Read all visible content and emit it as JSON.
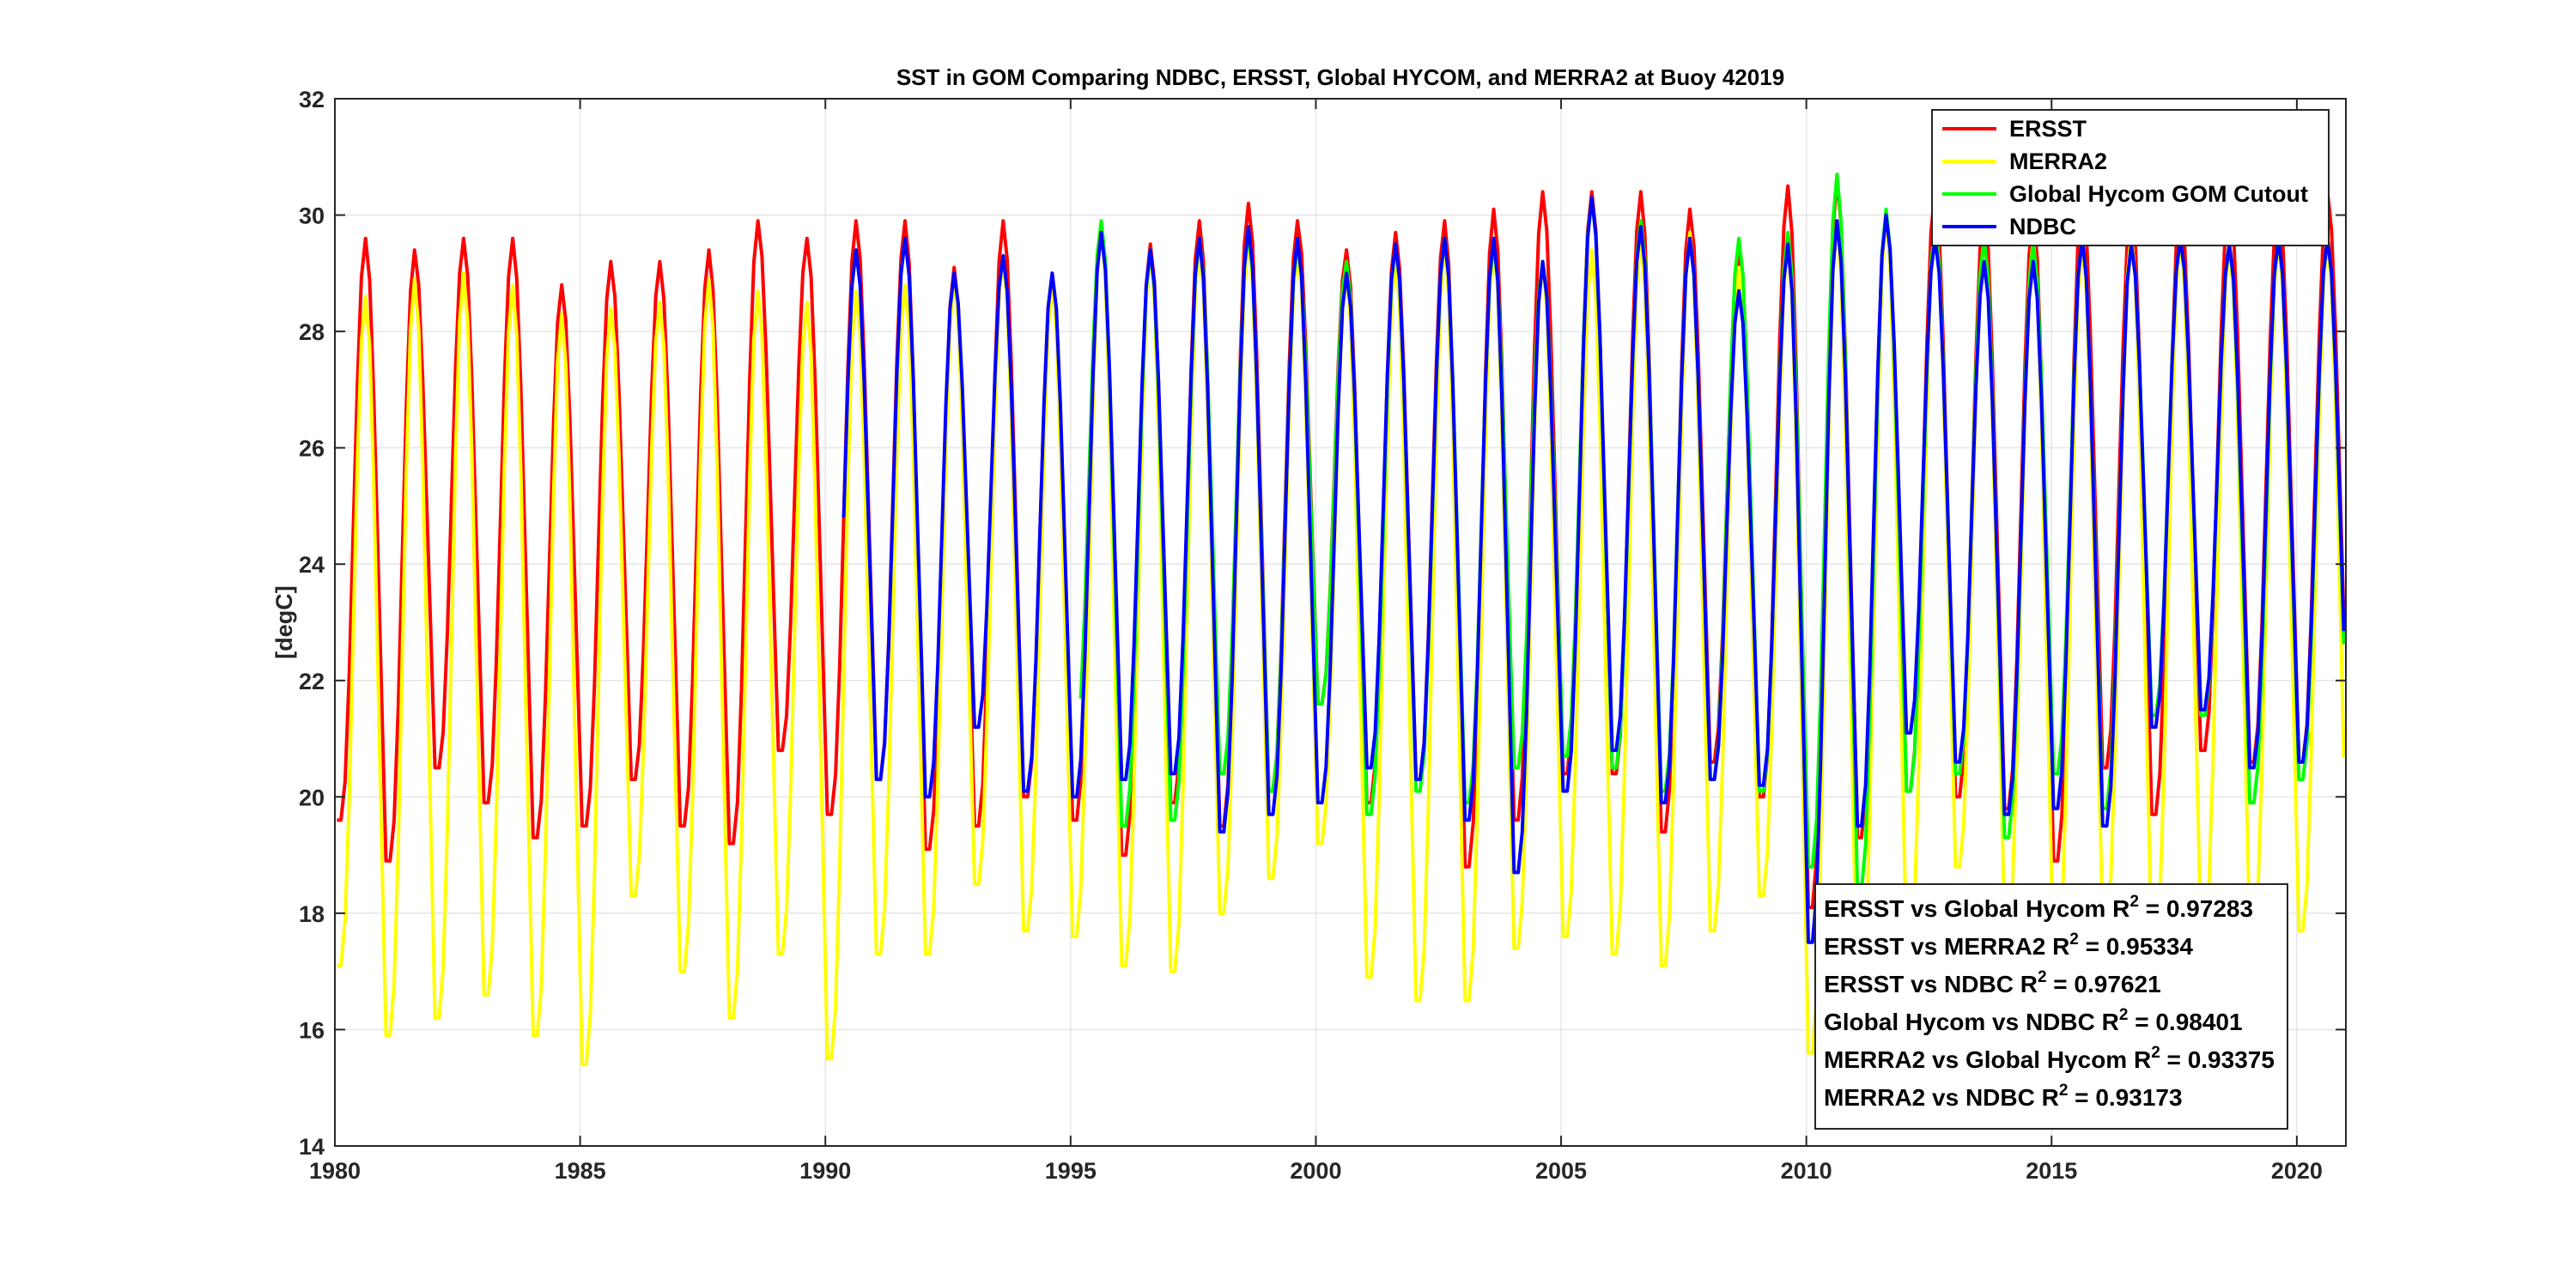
{
  "chart_data": {
    "type": "line",
    "title": "SST in GOM Comparing NDBC, ERSST, Global HYCOM, and MERRA2 at Buoy  42019",
    "xlabel": "",
    "ylabel": "[degC]",
    "xlim": [
      1980,
      2021
    ],
    "ylim": [
      14,
      32
    ],
    "xticks": [
      "1980",
      "1985",
      "1990",
      "1995",
      "2000",
      "2005",
      "2010",
      "2015",
      "2020"
    ],
    "yticks": [
      "14",
      "16",
      "18",
      "20",
      "22",
      "24",
      "26",
      "28",
      "30",
      "32"
    ],
    "grid": true,
    "legend_position": "top-right",
    "series": [
      {
        "name": "ERSST",
        "color": "#ff0000",
        "start": 1980.0,
        "end": 2021.0,
        "annual_peaks": [
          29.6,
          29.4,
          29.6,
          29.6,
          28.8,
          29.2,
          29.2,
          29.4,
          29.9,
          29.6,
          29.9,
          29.9,
          29.1,
          29.9,
          29.0,
          29.8,
          29.5,
          29.9,
          30.2,
          29.9,
          29.4,
          29.7,
          29.9,
          30.1,
          30.4,
          30.4,
          30.4,
          30.1,
          29.4,
          30.5,
          30.6,
          30.0,
          30.4,
          30.1,
          30.0,
          30.4,
          30.2,
          30.2,
          30.4,
          30.3,
          30.4
        ],
        "annual_troughs": [
          19.6,
          18.9,
          20.5,
          19.9,
          19.3,
          19.5,
          20.3,
          19.5,
          19.2,
          20.8,
          19.7,
          20.3,
          19.1,
          19.5,
          20.0,
          19.6,
          19.0,
          19.9,
          19.5,
          20.1,
          21.6,
          19.9,
          20.3,
          18.8,
          19.6,
          20.4,
          20.4,
          19.4,
          20.6,
          20.0,
          18.1,
          19.3,
          20.1,
          20.0,
          19.8,
          18.9,
          20.5,
          19.7,
          20.8,
          20.6,
          20.6
        ]
      },
      {
        "name": "MERRA2",
        "color": "#ffff00",
        "start": 1980.0,
        "end": 2021.0,
        "annual_peaks": [
          28.6,
          28.9,
          29.0,
          28.8,
          28.3,
          28.4,
          28.5,
          28.9,
          28.7,
          28.5,
          28.7,
          28.8,
          28.9,
          29.3,
          28.8,
          29.8,
          29.4,
          29.5,
          29.6,
          29.4,
          29.0,
          29.3,
          29.5,
          29.5,
          29.2,
          29.4,
          29.6,
          29.7,
          29.1,
          29.5,
          29.9,
          30.0,
          29.9,
          29.6,
          29.6,
          29.5,
          29.7,
          29.6,
          29.5,
          29.6,
          29.6
        ],
        "annual_troughs": [
          17.1,
          15.9,
          16.2,
          16.6,
          15.9,
          15.4,
          18.3,
          17.0,
          16.2,
          17.3,
          15.5,
          17.3,
          17.3,
          18.5,
          17.7,
          17.6,
          17.1,
          17.0,
          18.0,
          18.6,
          19.2,
          16.9,
          16.5,
          16.5,
          17.4,
          17.6,
          17.3,
          17.1,
          17.7,
          18.3,
          15.6,
          16.2,
          17.4,
          18.8,
          17.8,
          17.0,
          17.8,
          17.4,
          17.7,
          17.6,
          17.7
        ]
      },
      {
        "name": "Global Hycom GOM Cutout",
        "color": "#00ff00",
        "start": 1995.2,
        "end": 2021.0,
        "annual_peaks": [
          29.9,
          29.4,
          29.6,
          29.7,
          29.5,
          29.2,
          29.5,
          29.6,
          29.5,
          29.2,
          30.3,
          29.9,
          29.6,
          29.6,
          29.7,
          30.7,
          30.1,
          29.8,
          29.6,
          29.5,
          29.6,
          29.5,
          29.6,
          29.5,
          29.6,
          29.6
        ],
        "annual_troughs": [
          21.1,
          19.5,
          19.6,
          20.4,
          20.1,
          21.6,
          19.7,
          20.1,
          19.9,
          20.5,
          20.7,
          20.5,
          20.1,
          20.3,
          20.1,
          18.8,
          18.4,
          20.1,
          20.4,
          19.3,
          20.4,
          19.8,
          21.4,
          21.4,
          19.9,
          20.3
        ]
      },
      {
        "name": "NDBC",
        "color": "#0000ff",
        "start": 1990.3,
        "end": 2021.0,
        "annual_peaks": [
          29.4,
          29.6,
          29.0,
          29.3,
          29.0,
          29.7,
          29.4,
          29.6,
          29.8,
          29.6,
          29.0,
          29.5,
          29.6,
          29.6,
          29.2,
          30.3,
          29.8,
          29.6,
          28.7,
          29.5,
          29.9,
          30.0,
          29.6,
          29.2,
          29.2,
          29.6,
          29.5,
          29.6,
          29.5,
          29.6,
          29.6
        ],
        "annual_troughs": [
          20.2,
          20.3,
          20.0,
          21.2,
          20.1,
          20.0,
          20.3,
          20.4,
          19.4,
          19.7,
          19.9,
          20.5,
          20.3,
          19.6,
          18.7,
          20.1,
          20.8,
          19.9,
          20.3,
          20.2,
          17.5,
          19.5,
          21.1,
          20.6,
          19.7,
          19.8,
          19.5,
          21.2,
          21.5,
          20.5,
          20.6
        ]
      }
    ],
    "statistics": [
      {
        "text": "ERSST vs Global Hycom R",
        "sup": "2",
        "value": " = 0.97283"
      },
      {
        "text": "ERSST vs MERRA2 R",
        "sup": "2",
        "value": " = 0.95334"
      },
      {
        "text": "ERSST vs NDBC R",
        "sup": "2",
        "value": " = 0.97621"
      },
      {
        "text": "Global Hycom vs NDBC R",
        "sup": "2",
        "value": " = 0.98401"
      },
      {
        "text": "MERRA2 vs Global Hycom R",
        "sup": "2",
        "value": " = 0.93375"
      },
      {
        "text": "MERRA2 vs NDBC R",
        "sup": "2",
        "value": " = 0.93173"
      }
    ]
  }
}
